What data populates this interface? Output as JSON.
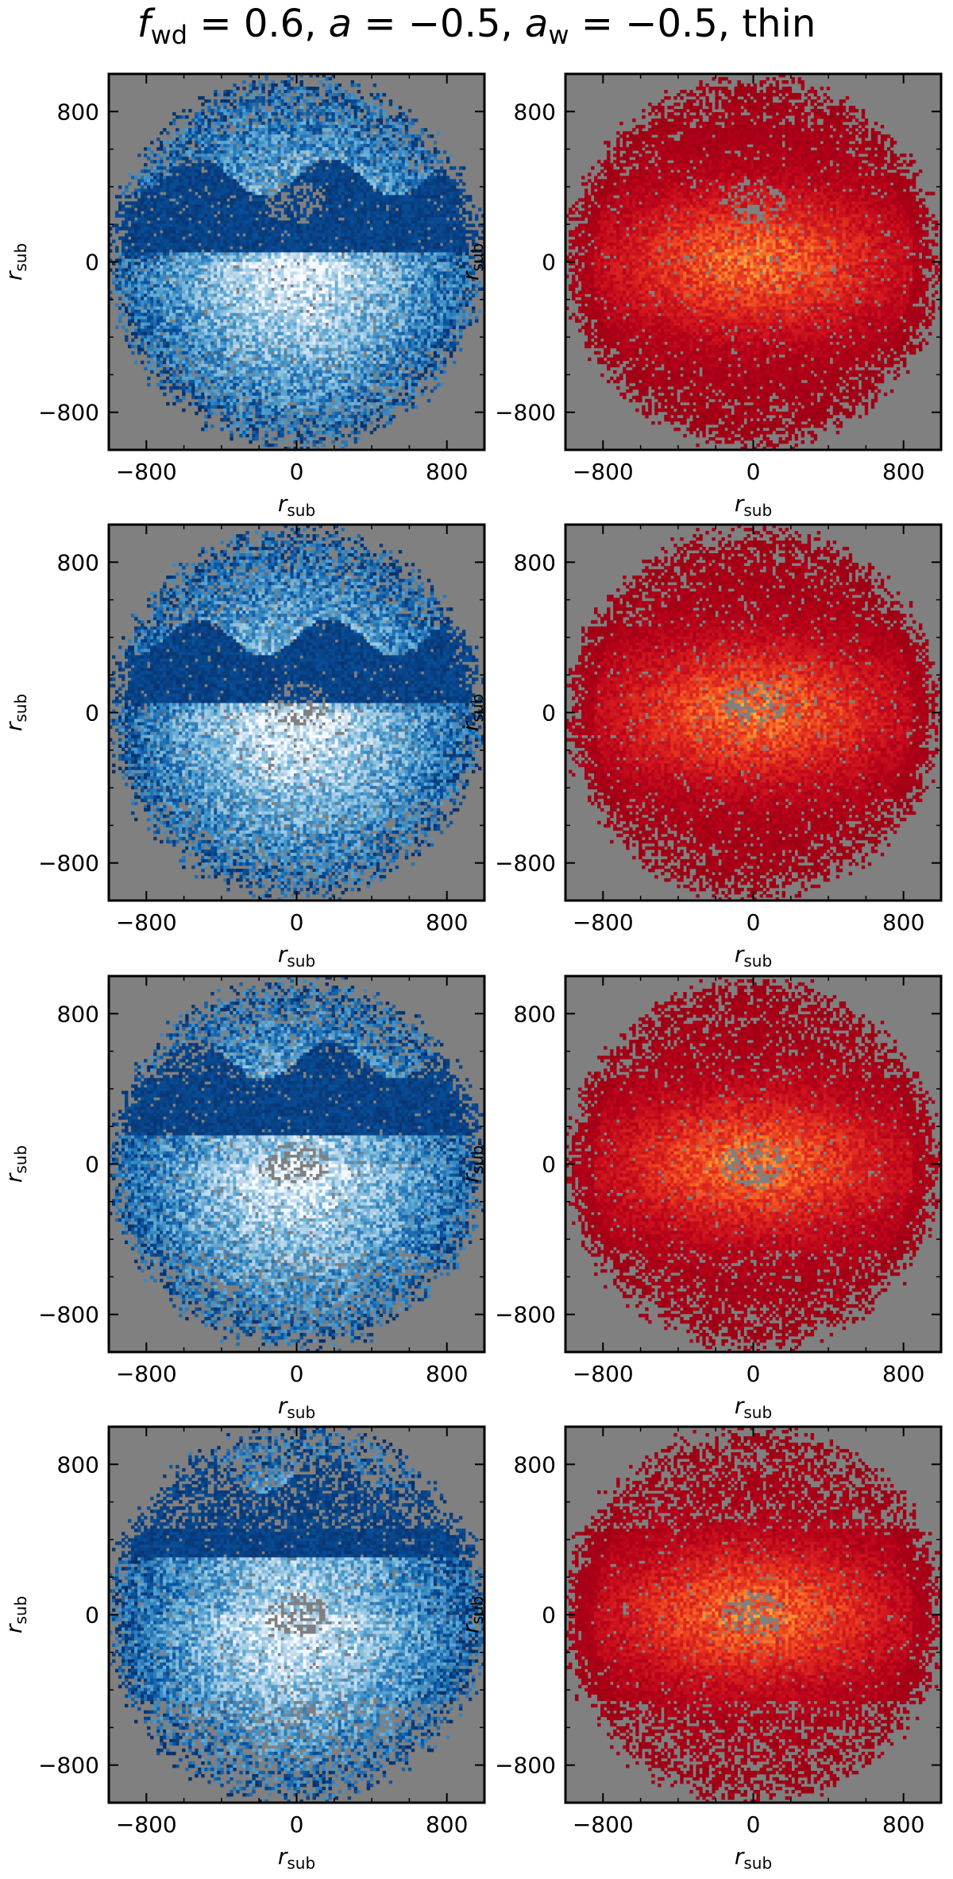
{
  "title": {
    "f": "f",
    "f_sub": "wd",
    "f_val": " = 0.6, ",
    "a": "a",
    "a_val": " = −0.5, ",
    "aw": "a",
    "aw_sub": "w",
    "aw_val": " = −0.5, ",
    "tail": "thin"
  },
  "chart_data": [
    {
      "type": "heatmap",
      "row": 1,
      "column": "left",
      "colormap": "blues",
      "xlabel": "r",
      "xlabel_sub": "sub",
      "ylabel": "r",
      "ylabel_sub": "sub",
      "xlim": [
        -1000,
        1000
      ],
      "ylim": [
        -1000,
        1000
      ],
      "xticks": [
        -800,
        0,
        800
      ],
      "yticks": [
        -800,
        0,
        800
      ],
      "xtick_labels": [
        "−800",
        "0",
        "800"
      ],
      "ytick_labels": [
        "−800",
        "0",
        "800"
      ],
      "background": "#808080"
    },
    {
      "type": "heatmap",
      "row": 1,
      "column": "right",
      "colormap": "reds",
      "xlabel": "r",
      "xlabel_sub": "sub",
      "ylabel": "r",
      "ylabel_sub": "sub",
      "xlim": [
        -1000,
        1000
      ],
      "ylim": [
        -1000,
        1000
      ],
      "xticks": [
        -800,
        0,
        800
      ],
      "yticks": [
        -800,
        0,
        800
      ],
      "xtick_labels": [
        "−800",
        "0",
        "800"
      ],
      "ytick_labels": [
        "−800",
        "0",
        "800"
      ],
      "background": "#808080"
    },
    {
      "type": "heatmap",
      "row": 2,
      "column": "left",
      "colormap": "blues",
      "xlabel": "r",
      "xlabel_sub": "sub",
      "ylabel": "r",
      "ylabel_sub": "sub",
      "xlim": [
        -1000,
        1000
      ],
      "ylim": [
        -1000,
        1000
      ],
      "xticks": [
        -800,
        0,
        800
      ],
      "yticks": [
        -800,
        0,
        800
      ],
      "xtick_labels": [
        "−800",
        "0",
        "800"
      ],
      "ytick_labels": [
        "−800",
        "0",
        "800"
      ],
      "background": "#808080"
    },
    {
      "type": "heatmap",
      "row": 2,
      "column": "right",
      "colormap": "reds",
      "xlabel": "r",
      "xlabel_sub": "sub",
      "ylabel": "r",
      "ylabel_sub": "sub",
      "xlim": [
        -1000,
        1000
      ],
      "ylim": [
        -1000,
        1000
      ],
      "xticks": [
        -800,
        0,
        800
      ],
      "yticks": [
        -800,
        0,
        800
      ],
      "xtick_labels": [
        "−800",
        "0",
        "800"
      ],
      "ytick_labels": [
        "−800",
        "0",
        "800"
      ],
      "background": "#808080"
    },
    {
      "type": "heatmap",
      "row": 3,
      "column": "left",
      "colormap": "blues",
      "xlabel": "r",
      "xlabel_sub": "sub",
      "ylabel": "r",
      "ylabel_sub": "sub",
      "xlim": [
        -1000,
        1000
      ],
      "ylim": [
        -1000,
        1000
      ],
      "xticks": [
        -800,
        0,
        800
      ],
      "yticks": [
        -800,
        0,
        800
      ],
      "xtick_labels": [
        "−800",
        "0",
        "800"
      ],
      "ytick_labels": [
        "−800",
        "0",
        "800"
      ],
      "background": "#808080"
    },
    {
      "type": "heatmap",
      "row": 3,
      "column": "right",
      "colormap": "reds",
      "xlabel": "r",
      "xlabel_sub": "sub",
      "ylabel": "r",
      "ylabel_sub": "sub",
      "xlim": [
        -1000,
        1000
      ],
      "ylim": [
        -1000,
        1000
      ],
      "xticks": [
        -800,
        0,
        800
      ],
      "yticks": [
        -800,
        0,
        800
      ],
      "xtick_labels": [
        "−800",
        "0",
        "800"
      ],
      "ytick_labels": [
        "−800",
        "0",
        "800"
      ],
      "background": "#808080"
    },
    {
      "type": "heatmap",
      "row": 4,
      "column": "left",
      "colormap": "blues",
      "xlabel": "r",
      "xlabel_sub": "sub",
      "ylabel": "r",
      "ylabel_sub": "sub",
      "xlim": [
        -1000,
        1000
      ],
      "ylim": [
        -1000,
        1000
      ],
      "xticks": [
        -800,
        0,
        800
      ],
      "yticks": [
        -800,
        0,
        800
      ],
      "xtick_labels": [
        "−800",
        "0",
        "800"
      ],
      "ytick_labels": [
        "−800",
        "0",
        "800"
      ],
      "background": "#808080"
    },
    {
      "type": "heatmap",
      "row": 4,
      "column": "right",
      "colormap": "reds",
      "xlabel": "r",
      "xlabel_sub": "sub",
      "ylabel": "r",
      "ylabel_sub": "sub",
      "xlim": [
        -1000,
        1000
      ],
      "ylim": [
        -1000,
        1000
      ],
      "xticks": [
        -800,
        0,
        800
      ],
      "yticks": [
        -800,
        0,
        800
      ],
      "xtick_labels": [
        "−800",
        "0",
        "800"
      ],
      "ytick_labels": [
        "−800",
        "0",
        "800"
      ],
      "background": "#808080"
    }
  ]
}
